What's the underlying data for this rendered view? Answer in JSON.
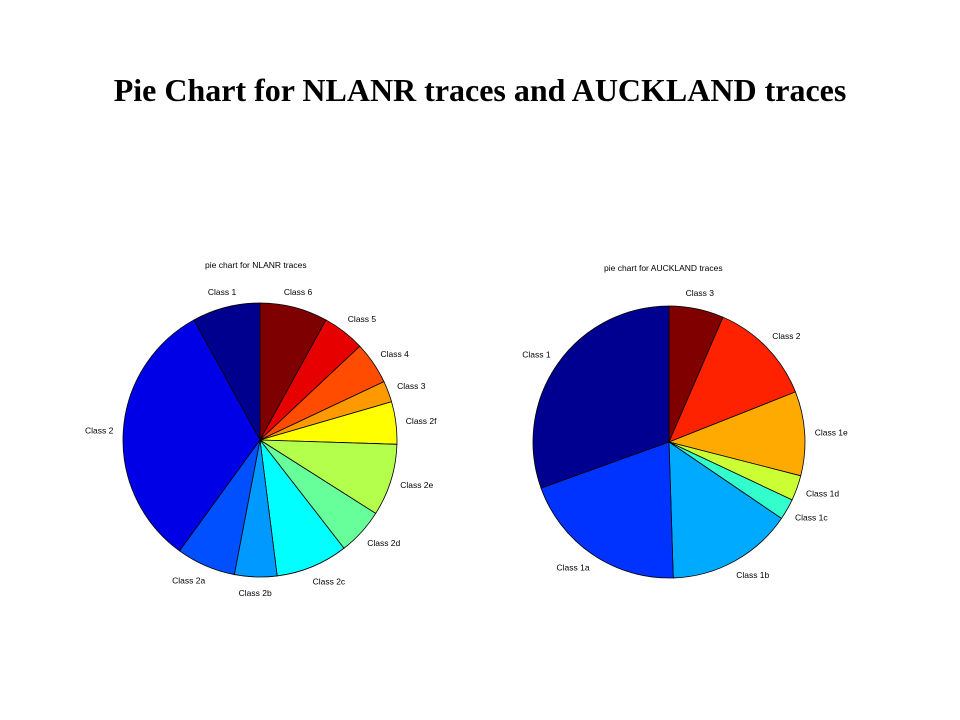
{
  "page": {
    "title": "Pie Chart for NLANR traces and AUCKLAND traces"
  },
  "chart_data": [
    {
      "type": "pie",
      "title": "pie chart for NLANR traces",
      "slices": [
        {
          "label": "Class 6",
          "value": 8.0,
          "color": "#7f0000"
        },
        {
          "label": "Class 5",
          "value": 5.0,
          "color": "#e60000"
        },
        {
          "label": "Class 4",
          "value": 5.0,
          "color": "#ff4c00"
        },
        {
          "label": "Class 3",
          "value": 2.5,
          "color": "#ff9900"
        },
        {
          "label": "Class 2f",
          "value": 5.0,
          "color": "#ffff00"
        },
        {
          "label": "Class 2e",
          "value": 8.5,
          "color": "#b3ff4c"
        },
        {
          "label": "Class 2d",
          "value": 5.5,
          "color": "#66ff99"
        },
        {
          "label": "Class 2c",
          "value": 8.5,
          "color": "#00ffff"
        },
        {
          "label": "Class 2b",
          "value": 5.0,
          "color": "#0099ff"
        },
        {
          "label": "Class 2a",
          "value": 7.0,
          "color": "#0050ff"
        },
        {
          "label": "Class 2",
          "value": 32.0,
          "color": "#0000e6"
        },
        {
          "label": "Class 1",
          "value": 8.0,
          "color": "#00008f"
        }
      ]
    },
    {
      "type": "pie",
      "title": "pie chart for AUCKLAND traces",
      "slices": [
        {
          "label": "Class 3",
          "value": 6.5,
          "color": "#800000"
        },
        {
          "label": "Class 2",
          "value": 12.5,
          "color": "#ff2200"
        },
        {
          "label": "Class 1e",
          "value": 10.0,
          "color": "#ffaa00"
        },
        {
          "label": "Class 1d",
          "value": 3.0,
          "color": "#ccff33"
        },
        {
          "label": "Class 1c",
          "value": 2.5,
          "color": "#33ffcc"
        },
        {
          "label": "Class 1b",
          "value": 15.0,
          "color": "#00aaff"
        },
        {
          "label": "Class 1a",
          "value": 20.0,
          "color": "#0033ff"
        },
        {
          "label": "Class 1",
          "value": 30.5,
          "color": "#000090"
        }
      ]
    }
  ]
}
